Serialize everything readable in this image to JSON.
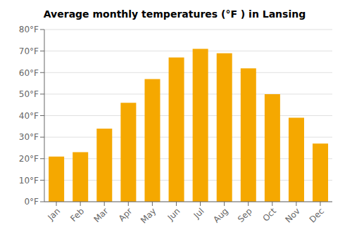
{
  "chart_data": {
    "type": "bar",
    "title": "Average monthly temperatures (°F ) in Lansing",
    "categories": [
      "Jan",
      "Feb",
      "Mar",
      "Apr",
      "May",
      "Jun",
      "Jul",
      "Aug",
      "Sep",
      "Oct",
      "Nov",
      "Dec"
    ],
    "values": [
      21,
      23,
      34,
      46,
      57,
      67,
      71,
      69,
      62,
      50,
      39,
      27
    ],
    "color": "#F5A800",
    "ylim": [
      0,
      80
    ],
    "yticks": [
      {
        "value": 0,
        "label": "0°F"
      },
      {
        "value": 10,
        "label": "10°F"
      },
      {
        "value": 20,
        "label": "20°F"
      },
      {
        "value": 30,
        "label": "30°F"
      },
      {
        "value": 40,
        "label": "40°F"
      },
      {
        "value": 50,
        "label": "50°F"
      },
      {
        "value": 60,
        "label": "60°F"
      },
      {
        "value": 70,
        "label": "70°F"
      },
      {
        "value": 80,
        "label": "80°F"
      }
    ],
    "grid": true
  }
}
